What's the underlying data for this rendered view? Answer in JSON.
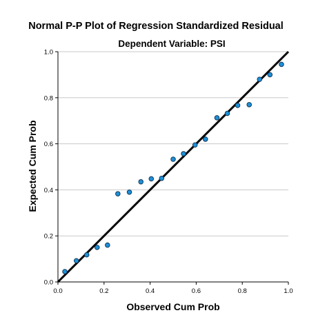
{
  "chart_data": {
    "type": "scatter",
    "title": "Normal P-P Plot of Regression Standardized Residual",
    "subtitle": "Dependent Variable: PSI",
    "xlabel": "Observed Cum Prob",
    "ylabel": "Expected Cum Prob",
    "xlim": [
      0.0,
      1.0
    ],
    "ylim": [
      0.0,
      1.0
    ],
    "x_ticks": [
      "0.0",
      "0.2",
      "0.4",
      "0.6",
      "0.8",
      "1.0"
    ],
    "y_ticks": [
      "0.0",
      "0.2",
      "0.4",
      "0.6",
      "0.8",
      "1.0"
    ],
    "grid": "horizontal",
    "reference_line": {
      "from": [
        0.0,
        0.0
      ],
      "to": [
        1.0,
        1.0
      ]
    },
    "point_color": "#1f8fd6",
    "point_edge_color": "#0b2f4f",
    "series": [
      {
        "points": [
          [
            0.03,
            0.045
          ],
          [
            0.08,
            0.092
          ],
          [
            0.125,
            0.118
          ],
          [
            0.17,
            0.15
          ],
          [
            0.215,
            0.16
          ],
          [
            0.26,
            0.383
          ],
          [
            0.31,
            0.39
          ],
          [
            0.36,
            0.435
          ],
          [
            0.405,
            0.448
          ],
          [
            0.45,
            0.45
          ],
          [
            0.5,
            0.533
          ],
          [
            0.545,
            0.557
          ],
          [
            0.595,
            0.595
          ],
          [
            0.64,
            0.62
          ],
          [
            0.69,
            0.713
          ],
          [
            0.735,
            0.732
          ],
          [
            0.78,
            0.767
          ],
          [
            0.83,
            0.77
          ],
          [
            0.875,
            0.88
          ],
          [
            0.92,
            0.9
          ],
          [
            0.97,
            0.945
          ]
        ]
      }
    ]
  }
}
